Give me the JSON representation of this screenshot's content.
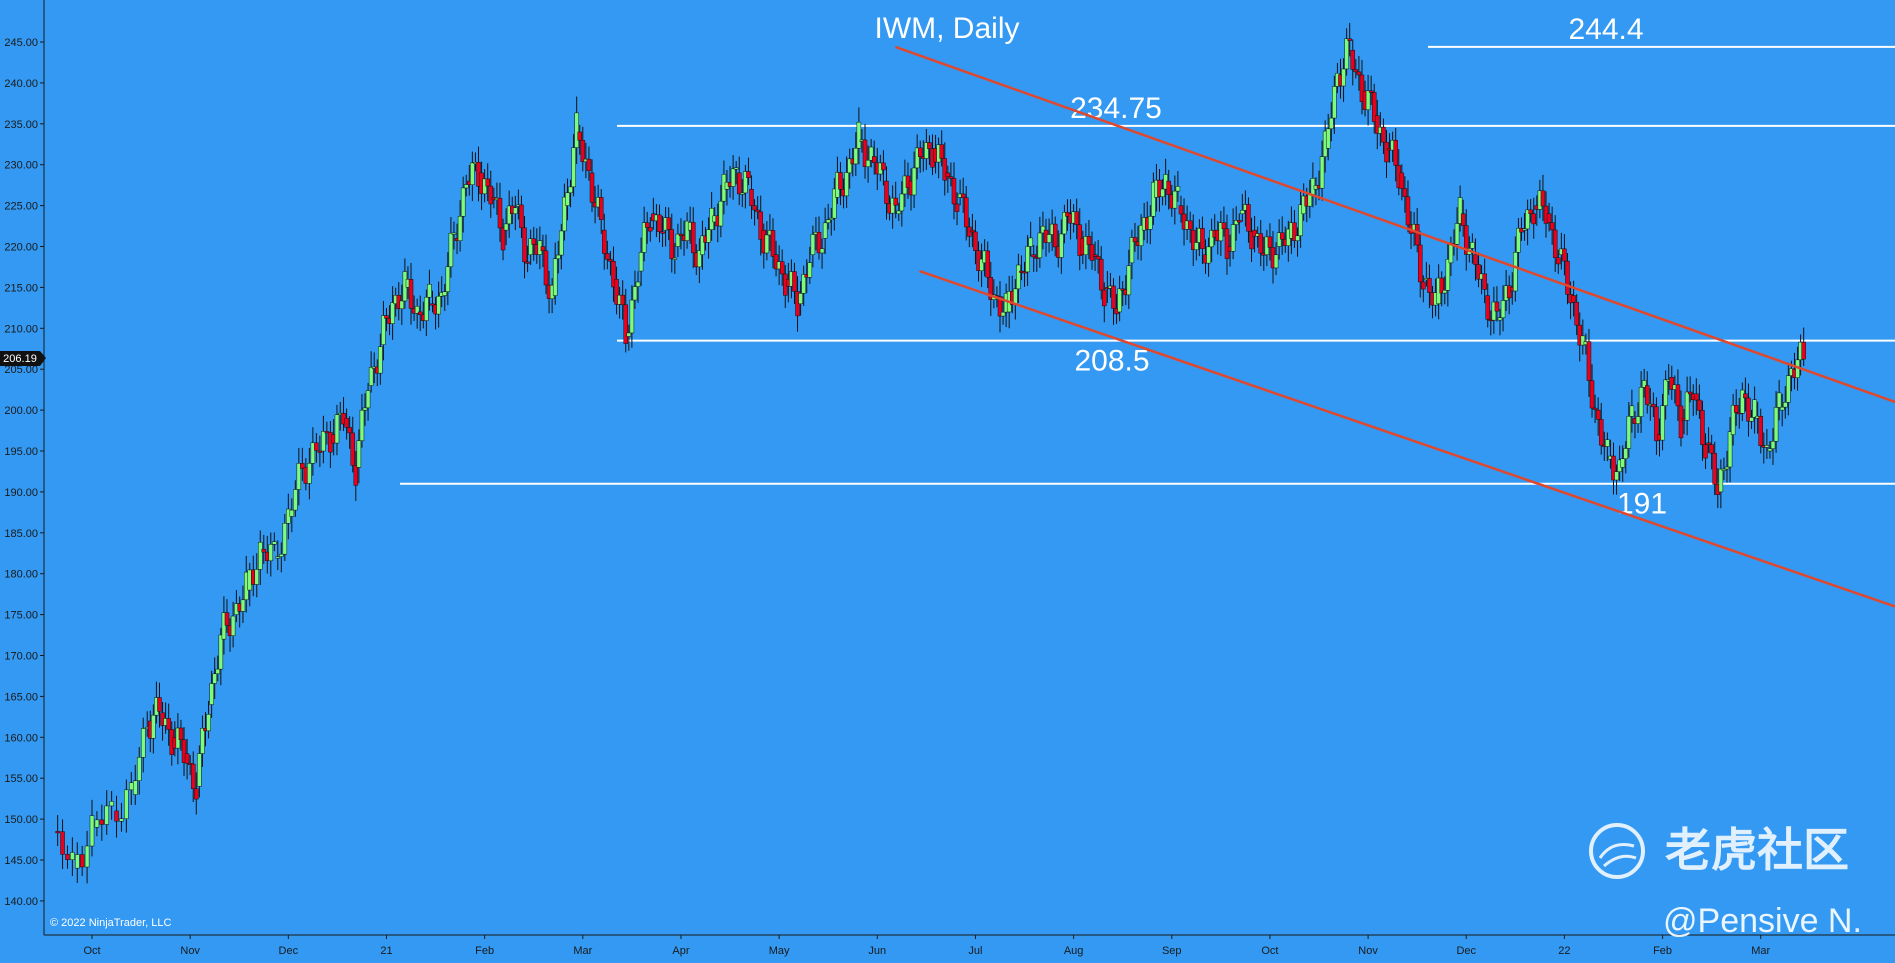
{
  "chart_data": {
    "type": "candlestick",
    "title": "IWM, Daily",
    "ylim": [
      137,
      252
    ],
    "yticks": [
      "140.00",
      "145.00",
      "150.00",
      "155.00",
      "160.00",
      "165.00",
      "170.00",
      "175.00",
      "180.00",
      "185.00",
      "190.00",
      "195.00",
      "200.00",
      "205.00",
      "210.00",
      "215.00",
      "220.00",
      "225.00",
      "230.00",
      "235.00",
      "240.00",
      "245.00"
    ],
    "xtick_labels": [
      "Oct",
      "Nov",
      "Dec",
      "21",
      "Feb",
      "Mar",
      "Apr",
      "May",
      "Jun",
      "Jul",
      "Aug",
      "Sep",
      "Oct",
      "Nov",
      "Dec",
      "22",
      "Feb",
      "Mar"
    ],
    "last_price": "206.19",
    "levels": [
      {
        "value": 244.4,
        "label": "244.4"
      },
      {
        "value": 234.75,
        "label": "234.75"
      },
      {
        "value": 208.5,
        "label": "208.5"
      },
      {
        "value": 191,
        "label": "191"
      }
    ],
    "channel": {
      "upper": [
        [
          0.46,
          244.4
        ],
        [
          1.0,
          201
        ]
      ],
      "lower": [
        [
          0.473,
          217
        ],
        [
          1.0,
          176
        ]
      ]
    },
    "closes": [
      {
        "month": "Oct",
        "values": [
          148.5,
          144,
          149,
          151,
          153
        ]
      },
      {
        "month": "Nov",
        "values": [
          162,
          163,
          160,
          158,
          154,
          164,
          172,
          175
        ]
      },
      {
        "month": "Dec",
        "values": [
          178,
          183,
          182,
          187,
          193,
          195,
          197
        ]
      },
      {
        "month": "21",
        "values": [
          199,
          193,
          203,
          208,
          213,
          215,
          212,
          213
        ]
      },
      {
        "month": "Feb",
        "values": [
          214,
          221,
          228,
          229,
          226,
          222,
          225,
          219
        ]
      },
      {
        "month": "Mar",
        "values": [
          220,
          214,
          225,
          234,
          229,
          222,
          216,
          209
        ]
      },
      {
        "month": "Apr",
        "values": [
          217,
          224,
          222,
          220,
          222,
          219,
          223,
          227
        ]
      },
      {
        "month": "May",
        "values": [
          229,
          227,
          222,
          219,
          216,
          213,
          219,
          221
        ]
      },
      {
        "month": "Jun",
        "values": [
          226,
          229,
          233,
          231,
          228,
          224,
          228,
          231
        ]
      },
      {
        "month": "Jul",
        "values": [
          232,
          229,
          226,
          222,
          218,
          214,
          212,
          217
        ]
      },
      {
        "month": "Aug",
        "values": [
          219,
          222,
          220,
          224,
          221,
          219,
          215,
          212
        ]
      },
      {
        "month": "Sep",
        "values": [
          218,
          222,
          226,
          228,
          225,
          222,
          219,
          222
        ]
      },
      {
        "month": "Oct",
        "values": [
          220,
          224,
          222,
          219,
          220,
          221,
          224,
          227
        ]
      },
      {
        "month": "Nov",
        "values": [
          232,
          241,
          244,
          239,
          236,
          232,
          229,
          222
        ]
      },
      {
        "month": "Dec",
        "values": [
          216,
          213,
          218,
          224,
          219,
          214,
          211,
          215
        ]
      },
      {
        "month": "22",
        "values": [
          222,
          225,
          224,
          219,
          214,
          208,
          200,
          194
        ]
      },
      {
        "month": "Feb",
        "values": [
          193,
          199,
          203,
          197,
          204,
          199,
          202,
          196
        ]
      },
      {
        "month": "Mar",
        "values": [
          190,
          197,
          202,
          199,
          195,
          200,
          205,
          206.19
        ]
      }
    ]
  },
  "copyright": "© 2022 NinjaTrader, LLC",
  "watermark": "老虎社区",
  "author": "@Pensive N.",
  "colors": {
    "background": "#3399f3",
    "up": "#7CFC7C",
    "down": "#e8001c",
    "channel": "#e0482e",
    "level": "#ffffff"
  }
}
